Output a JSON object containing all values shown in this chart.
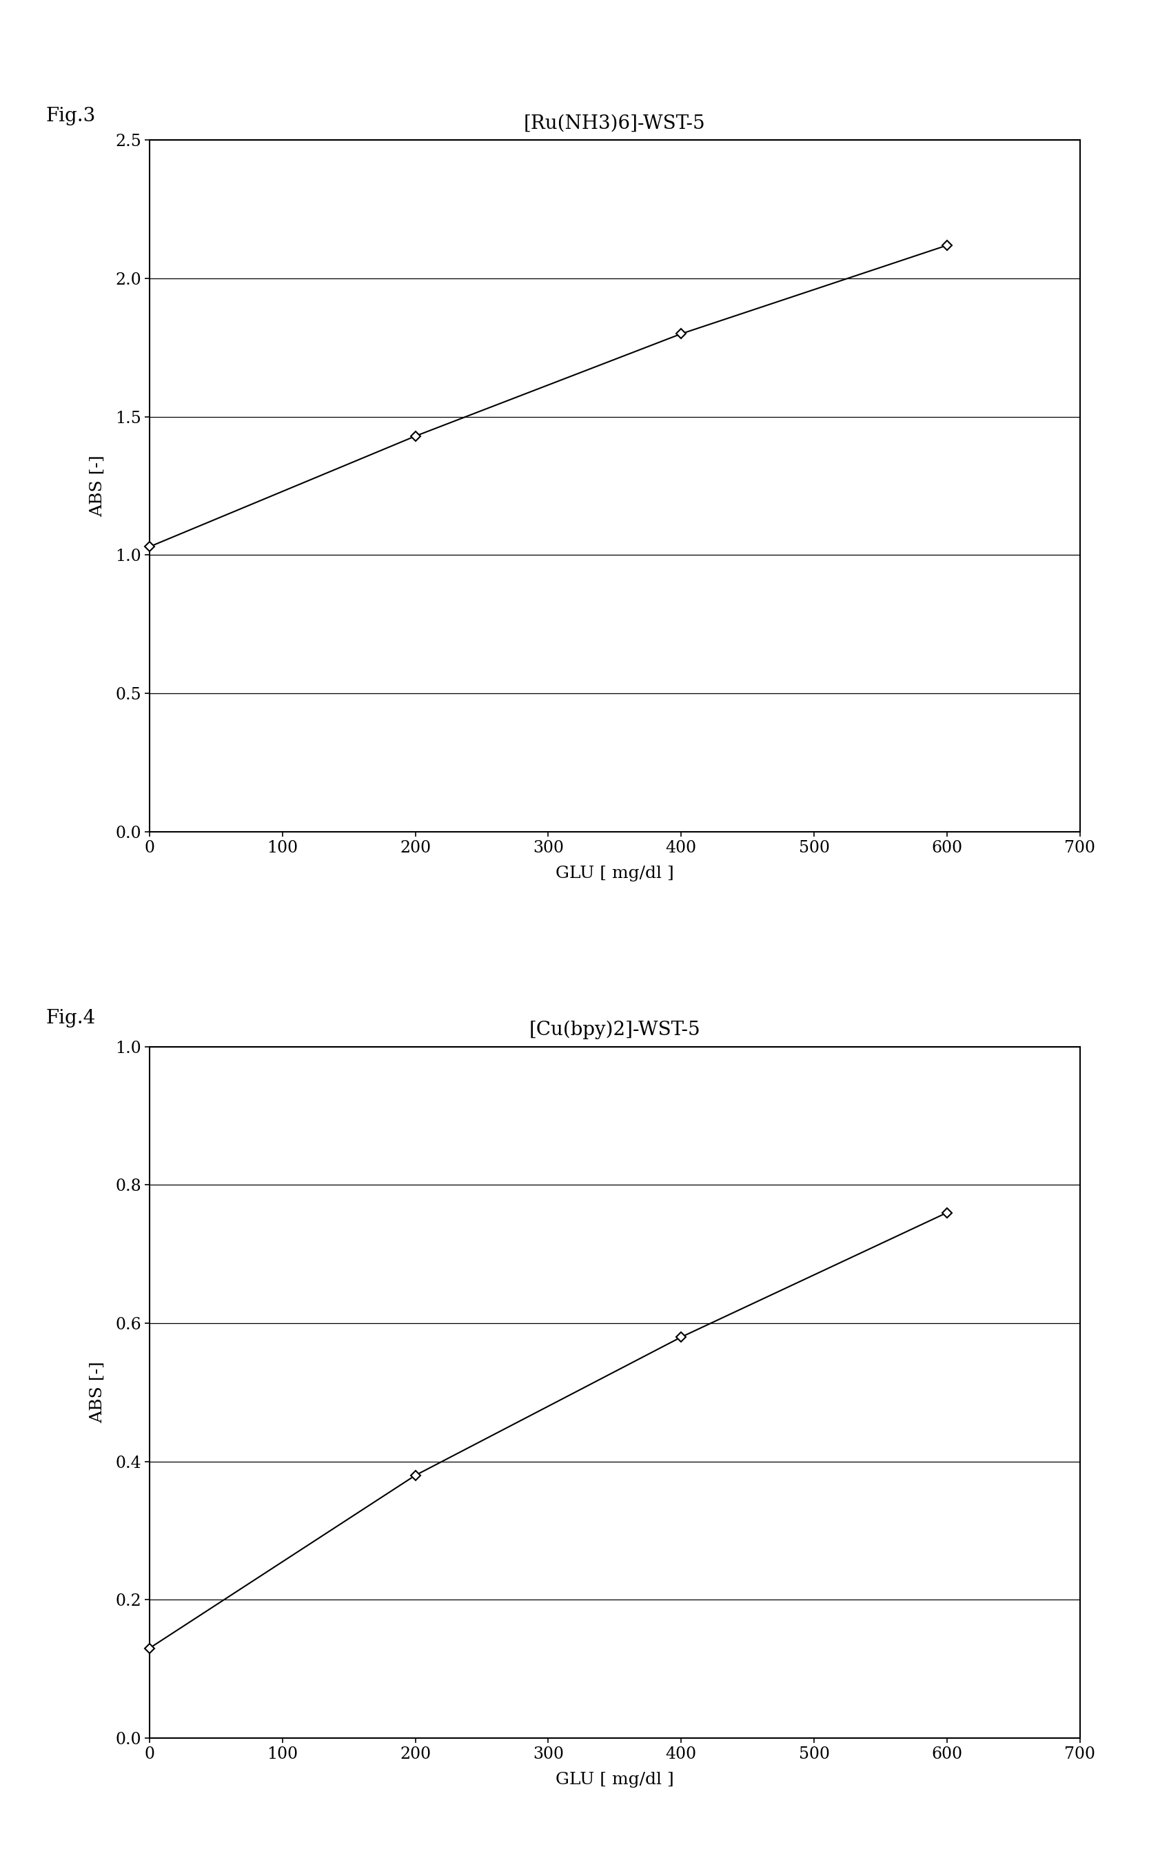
{
  "fig3": {
    "title": "[Ru(NH3)6]-WST-5",
    "x": [
      0,
      200,
      400,
      600
    ],
    "y": [
      1.03,
      1.43,
      1.8,
      2.12
    ],
    "xlabel": "GLU [ mg/dl ]",
    "ylabel": "ABS [-]",
    "xlim": [
      0,
      700
    ],
    "ylim": [
      0.0,
      2.5
    ],
    "xticks": [
      0,
      100,
      200,
      300,
      400,
      500,
      600,
      700
    ],
    "yticks": [
      0.0,
      0.5,
      1.0,
      1.5,
      2.0,
      2.5
    ],
    "fig_label": "Fig.3"
  },
  "fig4": {
    "title": "[Cu(bpy)2]-WST-5",
    "x": [
      0,
      200,
      400,
      600
    ],
    "y": [
      0.13,
      0.38,
      0.58,
      0.76
    ],
    "xlabel": "GLU [ mg/dl ]",
    "ylabel": "ABS [-]",
    "xlim": [
      0,
      700
    ],
    "ylim": [
      0.0,
      1.0
    ],
    "xticks": [
      0,
      100,
      200,
      300,
      400,
      500,
      600,
      700
    ],
    "yticks": [
      0.0,
      0.2,
      0.4,
      0.6,
      0.8,
      1.0
    ],
    "fig_label": "Fig.4"
  },
  "background_color": "#ffffff",
  "line_color": "#000000",
  "marker_style": "D",
  "marker_size": 7,
  "marker_facecolor": "#ffffff",
  "marker_edgecolor": "#000000",
  "line_width": 1.5,
  "font_size_title": 20,
  "font_size_label": 18,
  "font_size_tick": 17,
  "font_size_fig_label": 20
}
